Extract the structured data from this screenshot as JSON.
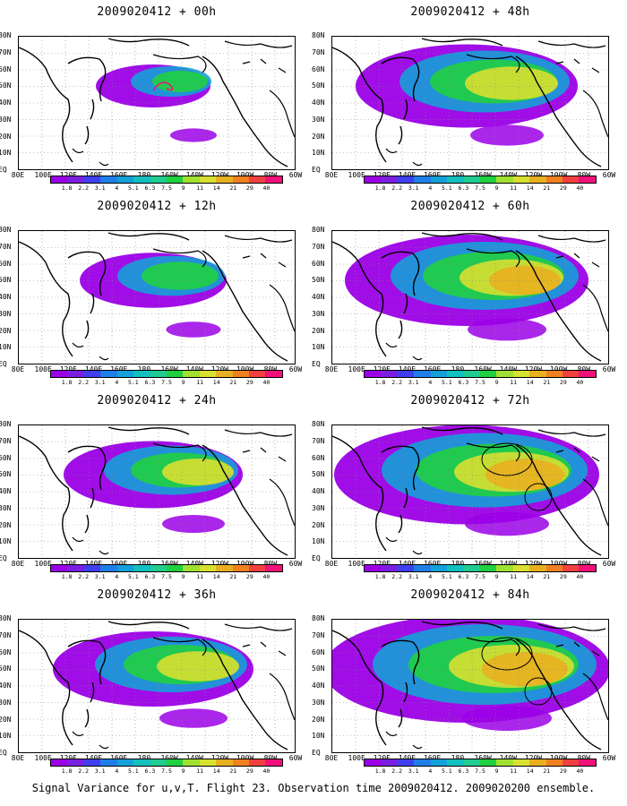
{
  "panels": [
    {
      "title": "2009020412 + 00h",
      "col": 0,
      "row": 0,
      "intensity": 0.2
    },
    {
      "title": "2009020412 + 12h",
      "col": 0,
      "row": 1,
      "intensity": 0.35
    },
    {
      "title": "2009020412 + 24h",
      "col": 0,
      "row": 2,
      "intensity": 0.5
    },
    {
      "title": "2009020412 + 36h",
      "col": 0,
      "row": 3,
      "intensity": 0.6
    },
    {
      "title": "2009020412 + 48h",
      "col": 1,
      "row": 0,
      "intensity": 0.7
    },
    {
      "title": "2009020412 + 60h",
      "col": 1,
      "row": 1,
      "intensity": 0.8
    },
    {
      "title": "2009020412 + 72h",
      "col": 1,
      "row": 2,
      "intensity": 0.9
    },
    {
      "title": "2009020412 + 84h",
      "col": 1,
      "row": 3,
      "intensity": 1.0
    }
  ],
  "lat_labels": [
    "80N",
    "70N",
    "60N",
    "50N",
    "40N",
    "30N",
    "20N",
    "10N",
    "EQ"
  ],
  "lon_labels": [
    "80E",
    "100E",
    "120E",
    "140E",
    "160E",
    "180",
    "160W",
    "140W",
    "120W",
    "100W",
    "80W",
    "60W"
  ],
  "colorbar": {
    "labels": [
      "1.8",
      "2.2",
      "3.1",
      "4",
      "5.1",
      "6.3",
      "7.5",
      "9",
      "11",
      "14",
      "21",
      "29",
      "40"
    ],
    "colors": [
      "#9b00e6",
      "#7a1fe0",
      "#3f3ff0",
      "#1f7fe8",
      "#14a0d8",
      "#12c0c0",
      "#20cc90",
      "#20d040",
      "#a0e030",
      "#d8e030",
      "#e8b020",
      "#f08020",
      "#f04040",
      "#f0107a"
    ]
  },
  "caption": "Signal Variance for u,v,T. Flight 23. Observation time 2009020412. 2009020200 ensemble."
}
